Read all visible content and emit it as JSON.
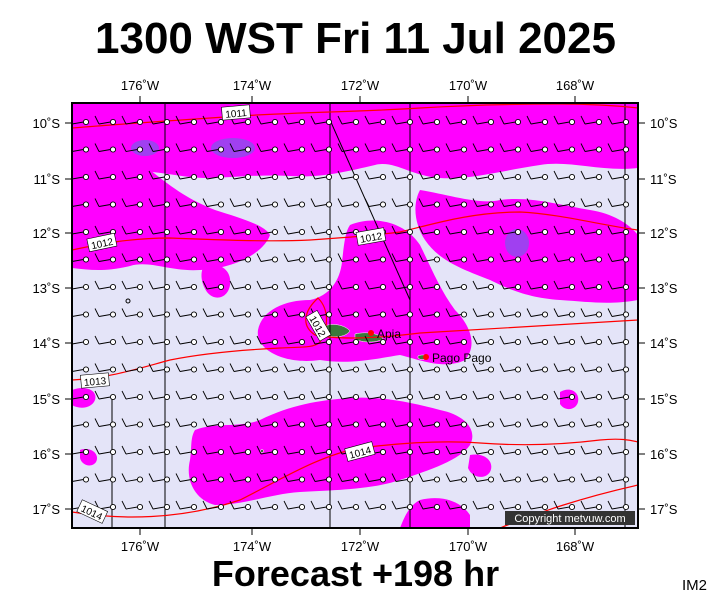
{
  "title": "1300 WST Fri 11 Jul 2025",
  "footer": "Forecast +198 hr",
  "corner_label": "IM2",
  "copyright": "Copyright metvuw.com",
  "lon_labels": [
    "176˚W",
    "174˚W",
    "172˚W",
    "170˚W",
    "168˚W"
  ],
  "lat_labels": [
    "10˚S",
    "11˚S",
    "12˚S",
    "13˚S",
    "14˚S",
    "15˚S",
    "16˚S",
    "17˚S"
  ],
  "place_labels": [
    "Apia",
    "Pago Pago"
  ],
  "isobar_labels": [
    "1011",
    "1012",
    "1012",
    "1012",
    "1013",
    "1014",
    "1014"
  ],
  "colors": {
    "sea": "#e4e4f8",
    "rain_light": "#ff00ff",
    "rain_heavy": "#a040f0",
    "isobar": "#ff0000",
    "land": "#3a7a3a"
  },
  "wind_barbs": "uniform light easterly winds, ~10 kt across domain"
}
